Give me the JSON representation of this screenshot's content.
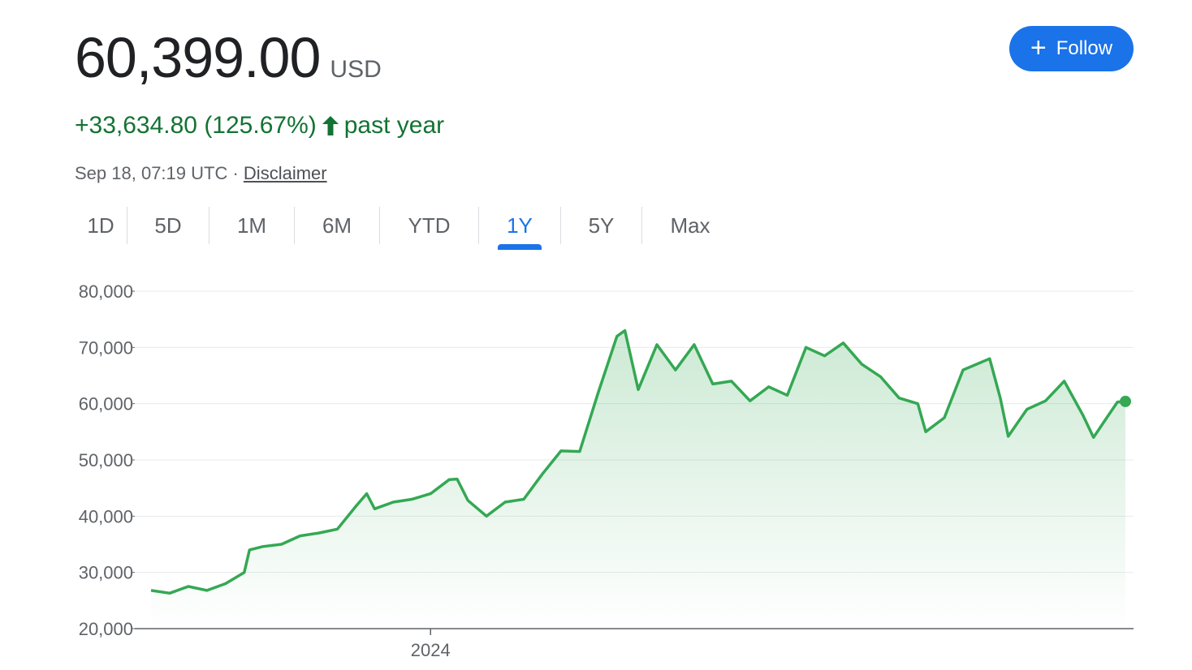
{
  "quote": {
    "price": "60,399.00",
    "currency": "USD",
    "change": "+33,634.80 (125.67%)",
    "change_period": "past year",
    "timestamp": "Sep 18, 07:19 UTC",
    "separator": "·",
    "disclaimer": "Disclaimer",
    "follow_label": "Follow"
  },
  "tabs": [
    {
      "label": "1D",
      "active": false
    },
    {
      "label": "5D",
      "active": false
    },
    {
      "label": "1M",
      "active": false
    },
    {
      "label": "6M",
      "active": false
    },
    {
      "label": "YTD",
      "active": false
    },
    {
      "label": "1Y",
      "active": true
    },
    {
      "label": "5Y",
      "active": false
    },
    {
      "label": "Max",
      "active": false
    }
  ],
  "colors": {
    "up": "#137333",
    "line": "#34a853",
    "accent": "#1a73e8"
  },
  "chart_data": {
    "type": "area",
    "x_range": [
      "2023-09-18",
      "2024-09-18"
    ],
    "ylim": [
      20000,
      80000
    ],
    "y_ticks": [
      "80,000",
      "70,000",
      "60,000",
      "50,000",
      "40,000",
      "30,000",
      "20,000"
    ],
    "y_tick_values": [
      80000,
      70000,
      60000,
      50000,
      40000,
      30000,
      20000
    ],
    "x_ticks": [
      {
        "label": "2024",
        "date": "2024-01-01"
      }
    ],
    "grid": true,
    "series": [
      {
        "values": [
          [
            "2023-09-18",
            26800
          ],
          [
            "2023-09-25",
            26300
          ],
          [
            "2023-10-02",
            27500
          ],
          [
            "2023-10-09",
            26800
          ],
          [
            "2023-10-16",
            28000
          ],
          [
            "2023-10-23",
            30000
          ],
          [
            "2023-10-25",
            34000
          ],
          [
            "2023-10-30",
            34600
          ],
          [
            "2023-11-06",
            35000
          ],
          [
            "2023-11-13",
            36500
          ],
          [
            "2023-11-20",
            37000
          ],
          [
            "2023-11-27",
            37700
          ],
          [
            "2023-12-04",
            41800
          ],
          [
            "2023-12-08",
            44000
          ],
          [
            "2023-12-11",
            41300
          ],
          [
            "2023-12-18",
            42500
          ],
          [
            "2023-12-25",
            43000
          ],
          [
            "2024-01-01",
            44000
          ],
          [
            "2024-01-08",
            46500
          ],
          [
            "2024-01-11",
            46600
          ],
          [
            "2024-01-15",
            42800
          ],
          [
            "2024-01-22",
            40000
          ],
          [
            "2024-01-29",
            42500
          ],
          [
            "2024-02-05",
            43000
          ],
          [
            "2024-02-12",
            47500
          ],
          [
            "2024-02-19",
            51600
          ],
          [
            "2024-02-26",
            51500
          ],
          [
            "2024-03-04",
            62000
          ],
          [
            "2024-03-11",
            72000
          ],
          [
            "2024-03-14",
            73000
          ],
          [
            "2024-03-19",
            62500
          ],
          [
            "2024-03-26",
            70500
          ],
          [
            "2024-04-02",
            66000
          ],
          [
            "2024-04-09",
            70500
          ],
          [
            "2024-04-16",
            63500
          ],
          [
            "2024-04-23",
            64000
          ],
          [
            "2024-04-30",
            60500
          ],
          [
            "2024-05-07",
            63000
          ],
          [
            "2024-05-14",
            61500
          ],
          [
            "2024-05-21",
            70000
          ],
          [
            "2024-05-28",
            68500
          ],
          [
            "2024-06-04",
            70800
          ],
          [
            "2024-06-11",
            67000
          ],
          [
            "2024-06-18",
            64800
          ],
          [
            "2024-06-25",
            61000
          ],
          [
            "2024-07-02",
            60000
          ],
          [
            "2024-07-05",
            55000
          ],
          [
            "2024-07-12",
            57500
          ],
          [
            "2024-07-19",
            66000
          ],
          [
            "2024-07-29",
            68000
          ],
          [
            "2024-08-02",
            61000
          ],
          [
            "2024-08-05",
            54200
          ],
          [
            "2024-08-12",
            59000
          ],
          [
            "2024-08-19",
            60500
          ],
          [
            "2024-08-26",
            64000
          ],
          [
            "2024-09-02",
            58000
          ],
          [
            "2024-09-06",
            54000
          ],
          [
            "2024-09-11",
            57500
          ],
          [
            "2024-09-15",
            60300
          ],
          [
            "2024-09-18",
            60399
          ]
        ]
      }
    ]
  }
}
